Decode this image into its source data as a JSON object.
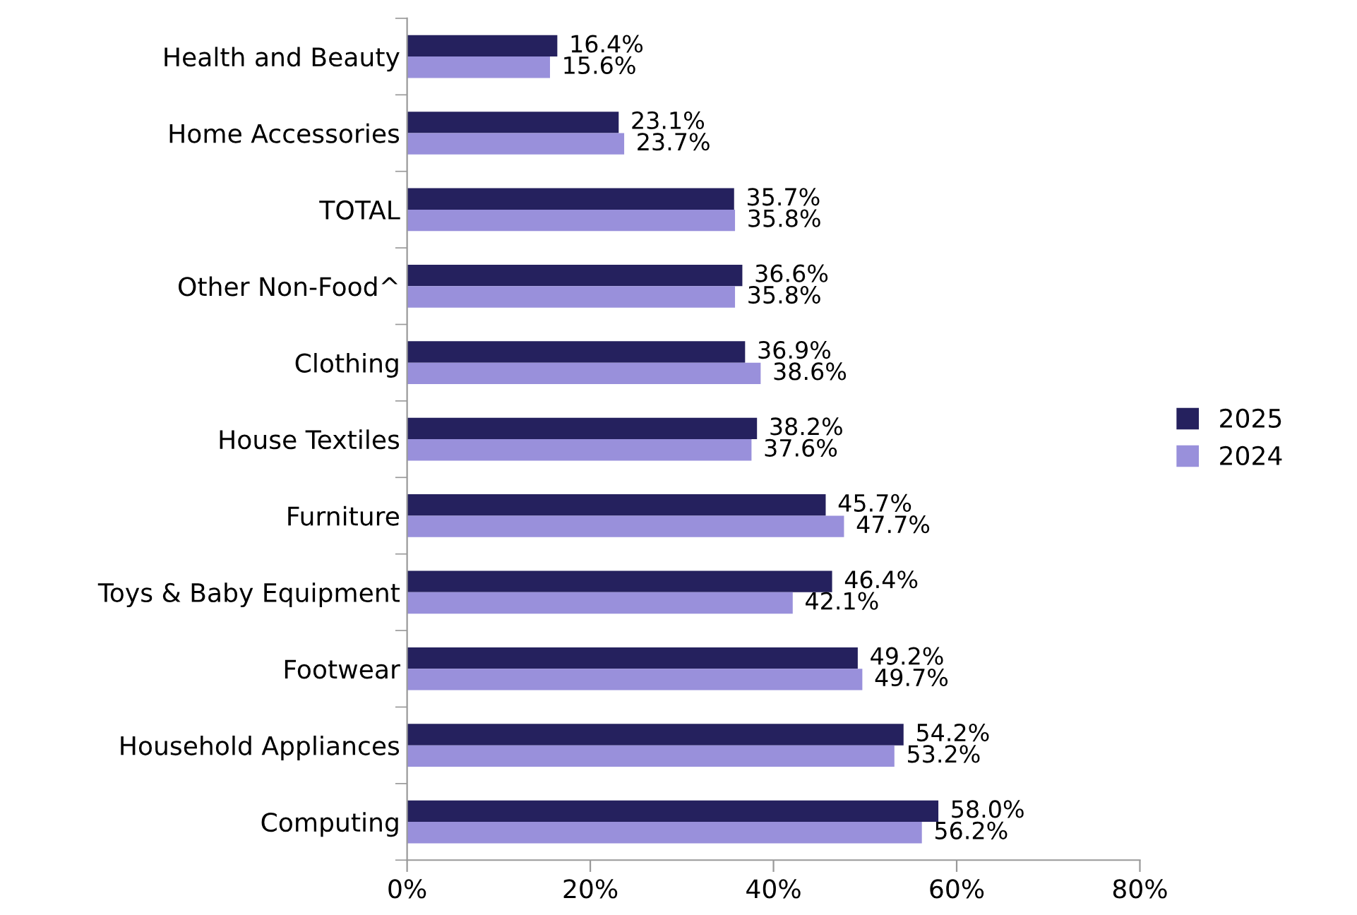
{
  "chart_data": {
    "type": "bar",
    "orientation": "horizontal",
    "categories": [
      "Health and Beauty",
      "Home Accessories",
      "TOTAL",
      "Other Non-Food^",
      "Clothing",
      "House Textiles",
      "Furniture",
      "Toys & Baby Equipment",
      "Footwear",
      "Household Appliances",
      "Computing"
    ],
    "series": [
      {
        "name": "2025",
        "color": "#25215e",
        "values": [
          16.4,
          23.1,
          35.7,
          36.6,
          36.9,
          38.2,
          45.7,
          46.4,
          49.2,
          54.2,
          58.0
        ],
        "value_labels": [
          "16.4%",
          "23.1%",
          "35.7%",
          "36.6%",
          "36.9%",
          "38.2%",
          "45.7%",
          "46.4%",
          "49.2%",
          "54.2%",
          "58.0%"
        ]
      },
      {
        "name": "2024",
        "color": "#9990db",
        "values": [
          15.6,
          23.7,
          35.8,
          35.8,
          38.6,
          37.6,
          47.7,
          42.1,
          49.7,
          53.2,
          56.2
        ],
        "value_labels": [
          "15.6%",
          "23.7%",
          "35.8%",
          "35.8%",
          "38.6%",
          "37.6%",
          "47.7%",
          "42.1%",
          "49.7%",
          "53.2%",
          "56.2%"
        ]
      }
    ],
    "xlim": [
      0,
      80
    ],
    "xticks": [
      {
        "value": 0,
        "label": "0%"
      },
      {
        "value": 20,
        "label": "20%"
      },
      {
        "value": 40,
        "label": "40%"
      },
      {
        "value": 60,
        "label": "60%"
      },
      {
        "value": 80,
        "label": "80%"
      }
    ],
    "grid": false,
    "legend": "right"
  }
}
